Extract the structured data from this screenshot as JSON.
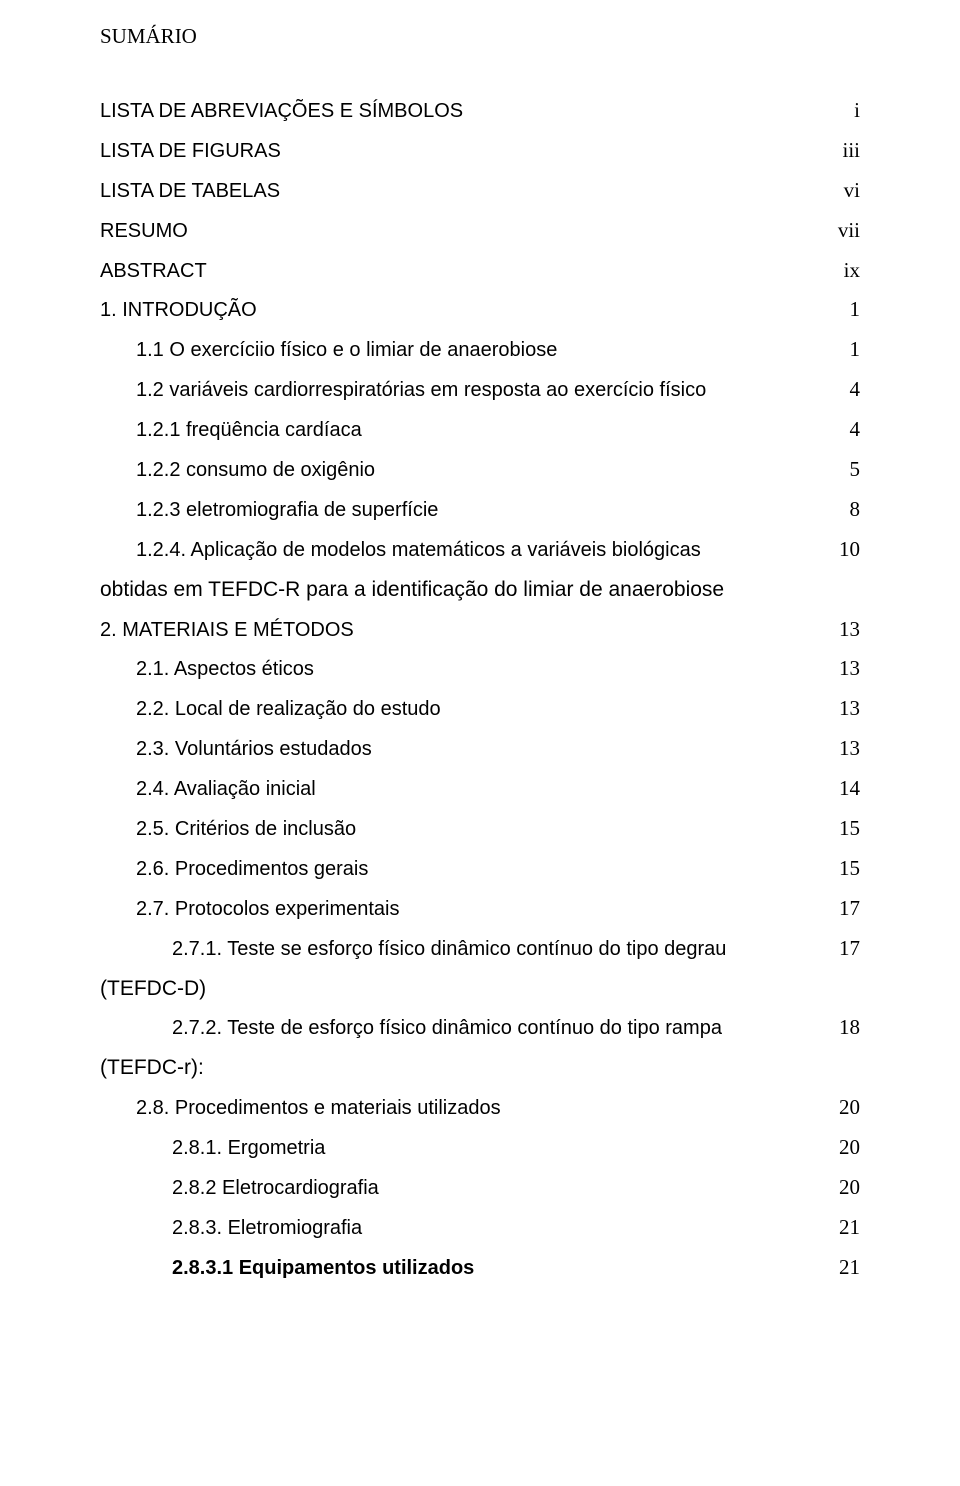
{
  "title": "SUMÁRIO",
  "entries": [
    {
      "label": "LISTA DE ABREVIAÇÕES E SÍMBOLOS",
      "page": "i",
      "font": "arial",
      "indent": 0
    },
    {
      "label": "LISTA DE FIGURAS",
      "page": "iii",
      "font": "arial",
      "indent": 0
    },
    {
      "label": "LISTA DE TABELAS",
      "page": "vi",
      "font": "arial",
      "indent": 0
    },
    {
      "label": "RESUMO",
      "page": "vii",
      "font": "arial",
      "indent": 0
    },
    {
      "label": "ABSTRACT",
      "page": "ix",
      "font": "arial",
      "indent": 0
    },
    {
      "label": "1. INTRODUÇÃO",
      "page": "1",
      "font": "arial",
      "indent": 0
    },
    {
      "label": "1.1 O exercíciio físico e o limiar de anaerobiose",
      "page": "1",
      "font": "arial",
      "indent": 1
    },
    {
      "label": "1.2 variáveis cardiorrespiratórias em resposta ao exercício físico",
      "page": "4",
      "font": "arial",
      "indent": 1
    },
    {
      "label": "1.2.1 freqüência cardíaca",
      "page": "4",
      "font": "arial",
      "indent": 1
    },
    {
      "label": "1.2.2 consumo de oxigênio",
      "page": "5",
      "font": "arial",
      "indent": 1
    },
    {
      "label": "1.2.3 eletromiografia de superfície",
      "page": "8",
      "font": "arial",
      "indent": 1
    },
    {
      "label": "1.2.4. Aplicação de modelos matemáticos a variáveis biológicas",
      "page": "10",
      "font": "arial",
      "indent": 1,
      "cont": "obtidas em TEFDC-R para a identificação do limiar de anaerobiose"
    },
    {
      "label": "2. MATERIAIS E MÉTODOS",
      "page": "13",
      "font": "arial",
      "indent": 0
    },
    {
      "label": "2.1. Aspectos éticos",
      "page": "13",
      "font": "arial",
      "indent": 1
    },
    {
      "label": "2.2. Local de realização do estudo",
      "page": "13",
      "font": "arial",
      "indent": 1
    },
    {
      "label": "2.3. Voluntários estudados",
      "page": "13",
      "font": "arial",
      "indent": 1
    },
    {
      "label": "2.4. Avaliação inicial",
      "page": "14",
      "font": "arial",
      "indent": 1
    },
    {
      "label": "2.5. Critérios de inclusão",
      "page": "15",
      "font": "arial",
      "indent": 1
    },
    {
      "label": "2.6. Procedimentos gerais",
      "page": "15",
      "font": "arial",
      "indent": 1
    },
    {
      "label": "2.7. Protocolos experimentais",
      "page": "17",
      "font": "arial",
      "indent": 1
    },
    {
      "label": "2.7.1. Teste se esforço físico dinâmico contínuo do tipo degrau",
      "page": "17",
      "font": "arial",
      "indent": 2,
      "cont": "(TEFDC-D)"
    },
    {
      "label": "2.7.2. Teste de esforço físico dinâmico contínuo do tipo rampa",
      "page": "18",
      "font": "arial",
      "indent": 2,
      "cont": "(TEFDC-r):"
    },
    {
      "label": "2.8. Procedimentos e materiais utilizados",
      "page": "20",
      "font": "arial",
      "indent": 1
    },
    {
      "label": "2.8.1. Ergometria",
      "page": "20",
      "font": "arial",
      "indent": 2
    },
    {
      "label": "2.8.2 Eletrocardiografia",
      "page": "20",
      "font": "arial",
      "indent": 2
    },
    {
      "label": "2.8.3. Eletromiografia",
      "page": "21",
      "font": "arial",
      "indent": 2
    },
    {
      "label": "2.8.3.1 Equipamentos utilizados",
      "page": "21",
      "font": "arial",
      "indent": 2,
      "bold": true
    }
  ]
}
